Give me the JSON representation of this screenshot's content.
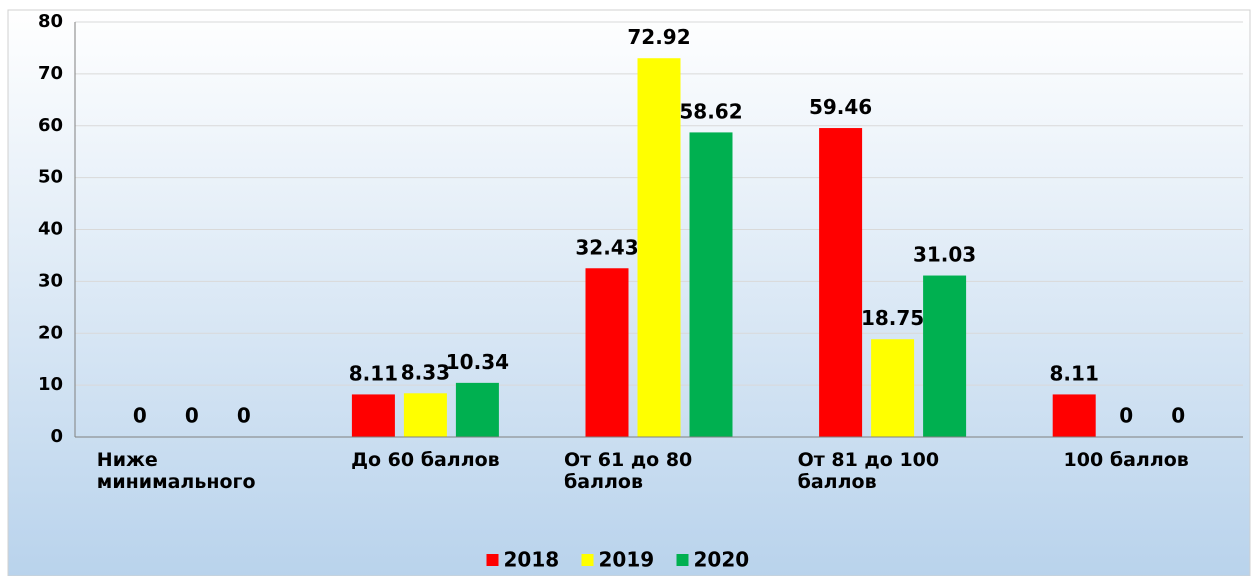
{
  "chart_data": {
    "type": "bar",
    "categories": [
      "Ниже минимального",
      "До 60 баллов",
      "От 61 до 80 баллов",
      "От 81 до 100 баллов",
      "100 баллов"
    ],
    "series": [
      {
        "name": "2018",
        "color": "#ff0000",
        "values": [
          0,
          8.11,
          32.43,
          59.46,
          8.11
        ]
      },
      {
        "name": "2019",
        "color": "#ffff00",
        "values": [
          0,
          8.33,
          72.92,
          18.75,
          0
        ]
      },
      {
        "name": "2020",
        "color": "#00b050",
        "values": [
          0,
          10.34,
          58.62,
          31.03,
          0
        ]
      }
    ],
    "ylim": [
      0,
      80
    ],
    "yticks": [
      0,
      10,
      20,
      30,
      40,
      50,
      60,
      70,
      80
    ],
    "grid": true,
    "legend": "bottom"
  }
}
